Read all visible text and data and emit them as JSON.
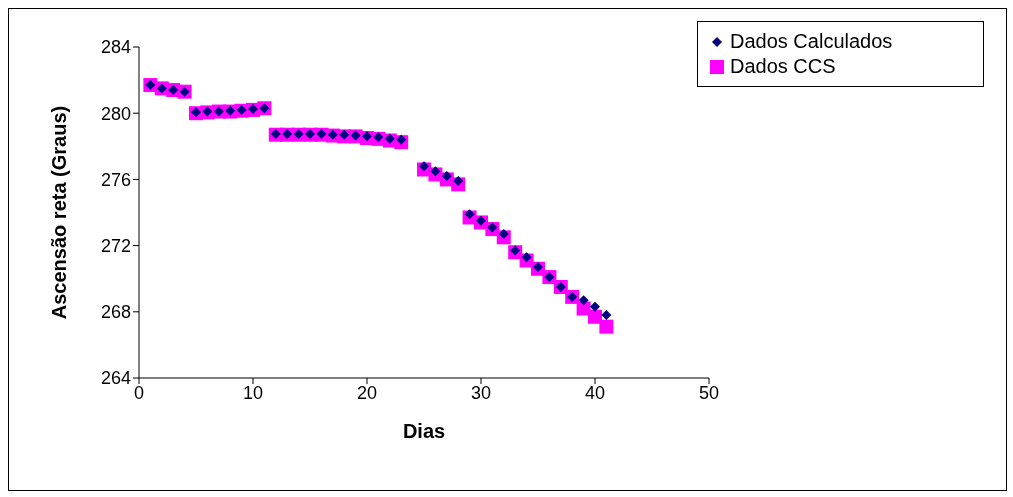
{
  "chart_data": {
    "type": "scatter",
    "xlabel": "Dias",
    "ylabel": "Ascensão reta (Graus)",
    "x": [
      1,
      2,
      3,
      4,
      5,
      6,
      7,
      8,
      9,
      10,
      11,
      12,
      13,
      14,
      15,
      16,
      17,
      18,
      19,
      20,
      21,
      22,
      23,
      25,
      26,
      27,
      28,
      29,
      30,
      31,
      32,
      33,
      34,
      35,
      36,
      37,
      38,
      39,
      40,
      41
    ],
    "series": [
      {
        "name": "Dados Calculados",
        "color": "#000080",
        "marker": "diamond",
        "values": [
          281.7,
          281.5,
          281.4,
          281.3,
          280.05,
          280.1,
          280.1,
          280.15,
          280.2,
          280.25,
          280.3,
          278.75,
          278.75,
          278.75,
          278.75,
          278.75,
          278.7,
          278.7,
          278.65,
          278.6,
          278.55,
          278.45,
          278.4,
          276.8,
          276.5,
          276.2,
          275.9,
          273.9,
          273.5,
          273.1,
          272.7,
          271.7,
          271.3,
          270.7,
          270.1,
          269.5,
          268.9,
          268.7,
          268.3,
          267.8
        ]
      },
      {
        "name": "Dados CCS",
        "color": "#ff00ff",
        "marker": "square",
        "values": [
          281.7,
          281.5,
          281.4,
          281.3,
          280.0,
          280.05,
          280.1,
          280.1,
          280.15,
          280.2,
          280.3,
          278.7,
          278.7,
          278.7,
          278.7,
          278.7,
          278.65,
          278.6,
          278.6,
          278.5,
          278.45,
          278.35,
          278.25,
          276.6,
          276.3,
          276.0,
          275.7,
          273.7,
          273.4,
          273.0,
          272.5,
          271.6,
          271.1,
          270.6,
          270.1,
          269.5,
          268.9,
          268.2,
          267.7,
          267.1
        ]
      }
    ],
    "xlim": [
      0,
      50
    ],
    "xticks": [
      0,
      10,
      20,
      30,
      40,
      50
    ],
    "ylim": [
      264,
      284
    ],
    "yticks": [
      264,
      268,
      272,
      276,
      280,
      284
    ],
    "grid": false,
    "legend": "top right"
  }
}
